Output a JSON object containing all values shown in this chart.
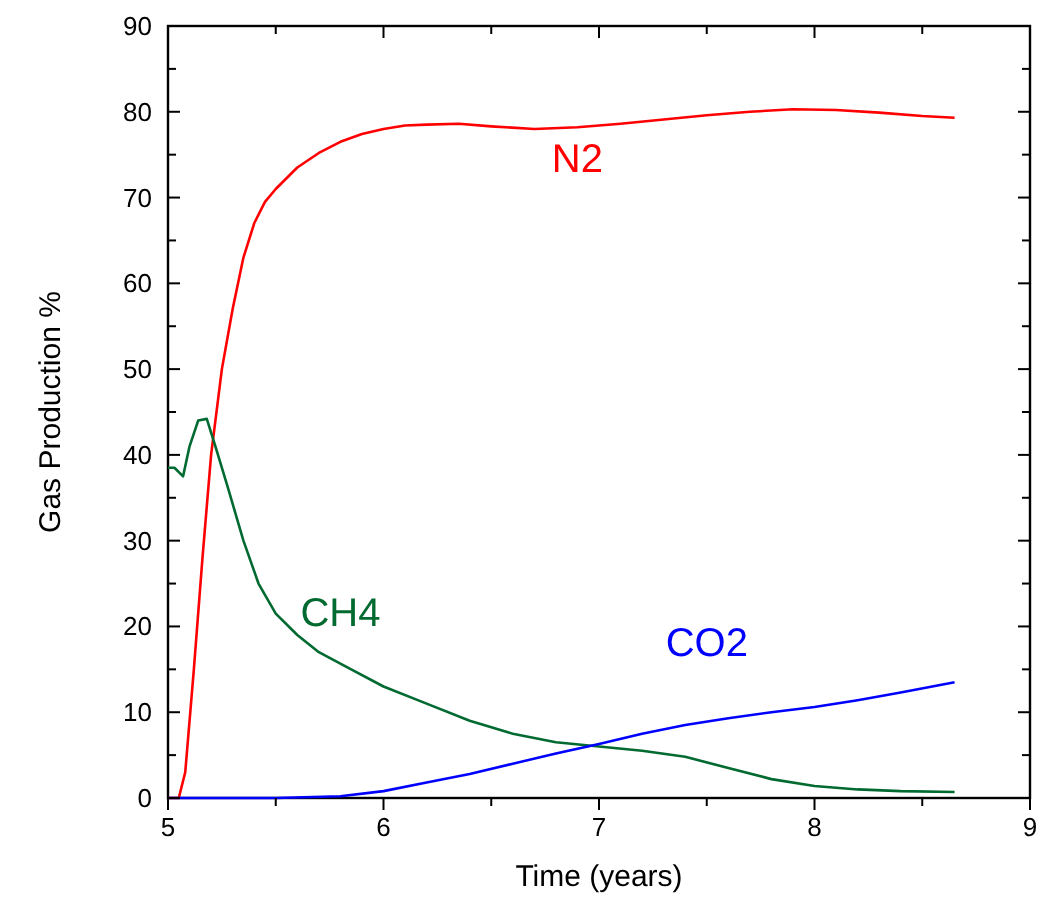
{
  "chart_data": {
    "type": "line",
    "xlabel": "Time (years)",
    "ylabel": "Gas Production %",
    "xlim": [
      5,
      9
    ],
    "ylim": [
      0,
      90
    ],
    "xticks": [
      5,
      {
        "value": 5.5,
        "label": null
      },
      6,
      {
        "value": 6.5,
        "label": null
      },
      7,
      {
        "value": 7.5,
        "label": null
      },
      8,
      {
        "value": 8.5,
        "label": null
      },
      9
    ],
    "yticks": [
      0,
      {
        "value": 5,
        "label": null
      },
      10,
      {
        "value": 15,
        "label": null
      },
      20,
      {
        "value": 25,
        "label": null
      },
      30,
      {
        "value": 35,
        "label": null
      },
      40,
      {
        "value": 45,
        "label": null
      },
      50,
      {
        "value": 55,
        "label": null
      },
      60,
      {
        "value": 65,
        "label": null
      },
      70,
      {
        "value": 75,
        "label": null
      },
      80,
      {
        "value": 85,
        "label": null
      },
      90
    ],
    "grid": false,
    "marker": "none",
    "line_style": "solid",
    "series": [
      {
        "name": "N2",
        "color": "#ff0000",
        "x": [
          5.0,
          5.05,
          5.08,
          5.12,
          5.16,
          5.2,
          5.25,
          5.3,
          5.35,
          5.4,
          5.45,
          5.5,
          5.6,
          5.7,
          5.8,
          5.9,
          6.0,
          6.1,
          6.2,
          6.35,
          6.5,
          6.7,
          6.9,
          7.1,
          7.3,
          7.5,
          7.7,
          7.9,
          8.1,
          8.3,
          8.5,
          8.65
        ],
        "values": [
          0,
          0,
          3,
          15,
          28,
          40,
          50,
          57,
          63,
          67,
          69.5,
          71,
          73.5,
          75.2,
          76.5,
          77.4,
          78,
          78.4,
          78.5,
          78.6,
          78.3,
          78,
          78.2,
          78.6,
          79.1,
          79.6,
          80,
          80.3,
          80.2,
          79.9,
          79.5,
          79.3
        ]
      },
      {
        "name": "CH4",
        "color": "#006a30",
        "x": [
          5.0,
          5.03,
          5.07,
          5.1,
          5.14,
          5.18,
          5.22,
          5.28,
          5.35,
          5.42,
          5.5,
          5.6,
          5.7,
          5.85,
          6.0,
          6.2,
          6.4,
          6.6,
          6.8,
          7.0,
          7.2,
          7.4,
          7.6,
          7.8,
          8.0,
          8.2,
          8.4,
          8.65
        ],
        "values": [
          38.5,
          38.5,
          37.5,
          41,
          44,
          44.2,
          41,
          36,
          30,
          25,
          21.5,
          19,
          17,
          15,
          13,
          11,
          9,
          7.5,
          6.5,
          6,
          5.5,
          4.8,
          3.5,
          2.2,
          1.4,
          1,
          0.8,
          0.7
        ]
      },
      {
        "name": "CO2",
        "color": "#0000ff",
        "x": [
          5.0,
          5.5,
          5.8,
          6.0,
          6.2,
          6.4,
          6.6,
          6.8,
          7.0,
          7.2,
          7.4,
          7.6,
          7.8,
          8.0,
          8.2,
          8.4,
          8.65
        ],
        "values": [
          0,
          0,
          0.2,
          0.8,
          1.8,
          2.8,
          4,
          5.2,
          6.3,
          7.5,
          8.5,
          9.3,
          10,
          10.6,
          11.4,
          12.3,
          13.5
        ]
      }
    ]
  }
}
